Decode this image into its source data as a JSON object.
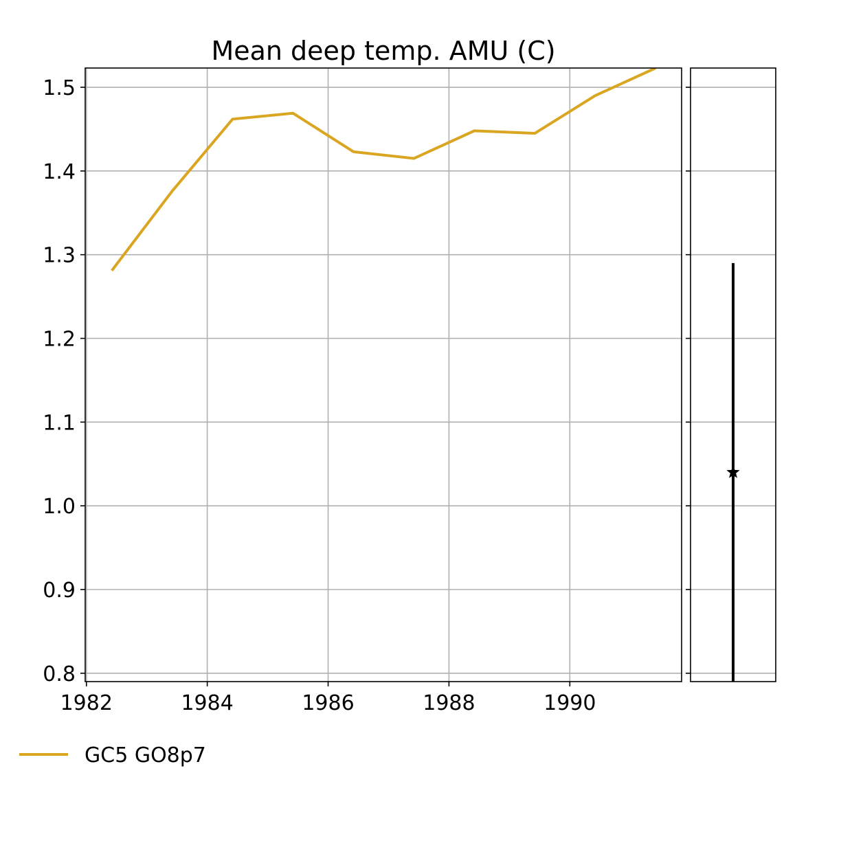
{
  "chart_data": {
    "type": "line",
    "title": "Mean deep temp. AMU (C)",
    "xlabel": "",
    "ylabel": "",
    "xlim": [
      1981.98,
      1991.85
    ],
    "ylim": [
      0.79,
      1.523
    ],
    "x_ticks": [
      1982,
      1984,
      1986,
      1988,
      1990
    ],
    "x_tick_labels": [
      "1982",
      "1984",
      "1986",
      "1988",
      "1990"
    ],
    "y_ticks": [
      0.8,
      0.9,
      1.0,
      1.1,
      1.2,
      1.3,
      1.4,
      1.5
    ],
    "y_tick_labels": [
      "0.8",
      "0.9",
      "1.0",
      "1.1",
      "1.2",
      "1.3",
      "1.4",
      "1.5"
    ],
    "grid": true,
    "legend_position": "bottom-left, below plot",
    "series": [
      {
        "name": "GC5 GO8p7",
        "color": "#daa520",
        "x": [
          1982.42,
          1983.42,
          1984.42,
          1985.42,
          1986.42,
          1987.42,
          1988.42,
          1989.42,
          1990.42,
          1991.42
        ],
        "y": [
          1.281,
          1.376,
          1.462,
          1.469,
          1.423,
          1.415,
          1.448,
          1.445,
          1.49,
          1.523
        ]
      }
    ],
    "side_panel": {
      "type": "errorbar",
      "marker": "star-icon",
      "color": "#000000",
      "center": 1.04,
      "low": 0.79,
      "high": 1.29
    }
  }
}
